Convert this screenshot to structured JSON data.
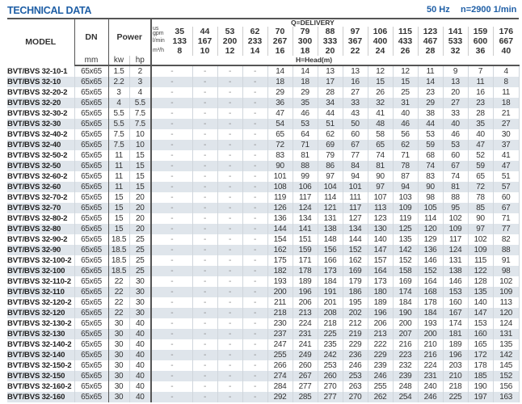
{
  "header": {
    "title": "TECHNICAL DATA",
    "frequency": "50 Hz",
    "speed": "n=2900 1/min"
  },
  "columns": {
    "model": "MODEL",
    "dn": "DN",
    "dn_unit": "mm",
    "power": "Power",
    "kw": "kw",
    "hp": "hp",
    "gpm_label": "us gpm",
    "lmin_label": "l/min",
    "m3h_label": "m³/h",
    "delivery_label": "Q=DELIVERY",
    "head_label": "H=Head(m)",
    "gpm": [
      "35",
      "44",
      "53",
      "62",
      "70",
      "79",
      "88",
      "97",
      "106",
      "115",
      "123",
      "141",
      "159",
      "176"
    ],
    "lmin": [
      "133",
      "167",
      "200",
      "233",
      "267",
      "300",
      "333",
      "367",
      "400",
      "433",
      "467",
      "533",
      "600",
      "667"
    ],
    "m3h": [
      "8",
      "10",
      "12",
      "14",
      "16",
      "18",
      "20",
      "22",
      "24",
      "26",
      "28",
      "32",
      "36",
      "40"
    ]
  },
  "colors": {
    "title": "#1f5fa6",
    "row_alt": "#dfe5eb"
  },
  "rows": [
    {
      "model": "BVT/BVS 32-10-1",
      "dn": "65x65",
      "kw": "1.5",
      "hp": "2",
      "heads": [
        "-",
        "-",
        "-",
        "-",
        "14",
        "14",
        "13",
        "13",
        "12",
        "12",
        "11",
        "9",
        "7",
        "4"
      ]
    },
    {
      "model": "BVT/BVS 32-10",
      "dn": "65x65",
      "kw": "2.2",
      "hp": "3",
      "heads": [
        "-",
        "-",
        "-",
        "-",
        "18",
        "18",
        "17",
        "16",
        "15",
        "15",
        "14",
        "13",
        "11",
        "8"
      ]
    },
    {
      "model": "BVT/BVS 32-20-2",
      "dn": "65x65",
      "kw": "3",
      "hp": "4",
      "heads": [
        "-",
        "-",
        "-",
        "-",
        "29",
        "29",
        "28",
        "27",
        "26",
        "25",
        "23",
        "20",
        "16",
        "11"
      ]
    },
    {
      "model": "BVT/BVS 32-20",
      "dn": "65x65",
      "kw": "4",
      "hp": "5.5",
      "heads": [
        "-",
        "-",
        "-",
        "-",
        "36",
        "35",
        "34",
        "33",
        "32",
        "31",
        "29",
        "27",
        "23",
        "18"
      ]
    },
    {
      "model": "BVT/BVS 32-30-2",
      "dn": "65x65",
      "kw": "5.5",
      "hp": "7.5",
      "heads": [
        "-",
        "-",
        "-",
        "-",
        "47",
        "46",
        "44",
        "43",
        "41",
        "40",
        "38",
        "33",
        "28",
        "21"
      ]
    },
    {
      "model": "BVT/BVS 32-30",
      "dn": "65x65",
      "kw": "5.5",
      "hp": "7.5",
      "heads": [
        "-",
        "-",
        "-",
        "-",
        "54",
        "53",
        "51",
        "50",
        "48",
        "46",
        "44",
        "40",
        "35",
        "27"
      ]
    },
    {
      "model": "BVT/BVS 32-40-2",
      "dn": "65x65",
      "kw": "7.5",
      "hp": "10",
      "heads": [
        "-",
        "-",
        "-",
        "-",
        "65",
        "64",
        "62",
        "60",
        "58",
        "56",
        "53",
        "46",
        "40",
        "30"
      ]
    },
    {
      "model": "BVT/BVS 32-40",
      "dn": "65x65",
      "kw": "7.5",
      "hp": "10",
      "heads": [
        "-",
        "-",
        "-",
        "-",
        "72",
        "71",
        "69",
        "67",
        "65",
        "62",
        "59",
        "53",
        "47",
        "37"
      ]
    },
    {
      "model": "BVT/BVS 32-50-2",
      "dn": "65x65",
      "kw": "11",
      "hp": "15",
      "heads": [
        "-",
        "-",
        "-",
        "-",
        "83",
        "81",
        "79",
        "77",
        "74",
        "71",
        "68",
        "60",
        "52",
        "41"
      ]
    },
    {
      "model": "BVT/BVS 32-50",
      "dn": "65x65",
      "kw": "11",
      "hp": "15",
      "heads": [
        "-",
        "-",
        "-",
        "-",
        "90",
        "88",
        "86",
        "84",
        "81",
        "78",
        "74",
        "67",
        "59",
        "47"
      ]
    },
    {
      "model": "BVT/BVS 32-60-2",
      "dn": "65x65",
      "kw": "11",
      "hp": "15",
      "heads": [
        "-",
        "-",
        "-",
        "-",
        "101",
        "99",
        "97",
        "94",
        "90",
        "87",
        "83",
        "74",
        "65",
        "51"
      ]
    },
    {
      "model": "BVT/BVS 32-60",
      "dn": "65x65",
      "kw": "11",
      "hp": "15",
      "heads": [
        "-",
        "-",
        "-",
        "-",
        "108",
        "106",
        "104",
        "101",
        "97",
        "94",
        "90",
        "81",
        "72",
        "57"
      ]
    },
    {
      "model": "BVT/BVS 32-70-2",
      "dn": "65x65",
      "kw": "15",
      "hp": "20",
      "heads": [
        "-",
        "-",
        "-",
        "-",
        "119",
        "117",
        "114",
        "111",
        "107",
        "103",
        "98",
        "88",
        "78",
        "60"
      ]
    },
    {
      "model": "BVT/BVS 32-70",
      "dn": "65x65",
      "kw": "15",
      "hp": "20",
      "heads": [
        "-",
        "-",
        "-",
        "-",
        "126",
        "124",
        "121",
        "117",
        "113",
        "109",
        "105",
        "95",
        "85",
        "67"
      ]
    },
    {
      "model": "BVT/BVS 32-80-2",
      "dn": "65x65",
      "kw": "15",
      "hp": "20",
      "heads": [
        "-",
        "-",
        "-",
        "-",
        "136",
        "134",
        "131",
        "127",
        "123",
        "119",
        "114",
        "102",
        "90",
        "71"
      ]
    },
    {
      "model": "BVT/BVS 32-80",
      "dn": "65x65",
      "kw": "15",
      "hp": "20",
      "heads": [
        "-",
        "-",
        "-",
        "-",
        "144",
        "141",
        "138",
        "134",
        "130",
        "125",
        "120",
        "109",
        "97",
        "77"
      ]
    },
    {
      "model": "BVT/BVS 32-90-2",
      "dn": "65x65",
      "kw": "18.5",
      "hp": "25",
      "heads": [
        "-",
        "-",
        "-",
        "-",
        "154",
        "151",
        "148",
        "144",
        "140",
        "135",
        "129",
        "117",
        "102",
        "82"
      ]
    },
    {
      "model": "BVT/BVS 32-90",
      "dn": "65x65",
      "kw": "18.5",
      "hp": "25",
      "heads": [
        "-",
        "-",
        "-",
        "-",
        "162",
        "159",
        "156",
        "152",
        "147",
        "142",
        "136",
        "124",
        "109",
        "88"
      ]
    },
    {
      "model": "BVT/BVS 32-100-2",
      "dn": "65x65",
      "kw": "18.5",
      "hp": "25",
      "heads": [
        "-",
        "-",
        "-",
        "-",
        "175",
        "171",
        "166",
        "162",
        "157",
        "152",
        "146",
        "131",
        "115",
        "91"
      ]
    },
    {
      "model": "BVT/BVS 32-100",
      "dn": "65x65",
      "kw": "18.5",
      "hp": "25",
      "heads": [
        "-",
        "-",
        "-",
        "-",
        "182",
        "178",
        "173",
        "169",
        "164",
        "158",
        "152",
        "138",
        "122",
        "98"
      ]
    },
    {
      "model": "BVT/BVS 32-110-2",
      "dn": "65x65",
      "kw": "22",
      "hp": "30",
      "heads": [
        "-",
        "-",
        "-",
        "-",
        "193",
        "189",
        "184",
        "179",
        "173",
        "169",
        "164",
        "146",
        "128",
        "102"
      ]
    },
    {
      "model": "BVT/BVS 32-110",
      "dn": "65x65",
      "kw": "22",
      "hp": "30",
      "heads": [
        "-",
        "-",
        "-",
        "-",
        "200",
        "196",
        "191",
        "186",
        "180",
        "174",
        "168",
        "153",
        "135",
        "109"
      ]
    },
    {
      "model": "BVT/BVS 32-120-2",
      "dn": "65x65",
      "kw": "22",
      "hp": "30",
      "heads": [
        "-",
        "-",
        "-",
        "-",
        "211",
        "206",
        "201",
        "195",
        "189",
        "184",
        "178",
        "160",
        "140",
        "113"
      ]
    },
    {
      "model": "BVT/BVS 32-120",
      "dn": "65x65",
      "kw": "22",
      "hp": "30",
      "heads": [
        "-",
        "-",
        "-",
        "-",
        "218",
        "213",
        "208",
        "202",
        "196",
        "190",
        "184",
        "167",
        "147",
        "120"
      ]
    },
    {
      "model": "BVT/BVS 32-130-2",
      "dn": "65x65",
      "kw": "30",
      "hp": "40",
      "heads": [
        "-",
        "-",
        "-",
        "-",
        "230",
        "224",
        "218",
        "212",
        "206",
        "200",
        "193",
        "174",
        "153",
        "124"
      ]
    },
    {
      "model": "BVT/BVS 32-130",
      "dn": "65x65",
      "kw": "30",
      "hp": "40",
      "heads": [
        "-",
        "-",
        "-",
        "-",
        "237",
        "231",
        "225",
        "219",
        "213",
        "207",
        "200",
        "181",
        "160",
        "131"
      ]
    },
    {
      "model": "BVT/BVS 32-140-2",
      "dn": "65x65",
      "kw": "30",
      "hp": "40",
      "heads": [
        "-",
        "-",
        "-",
        "-",
        "247",
        "241",
        "235",
        "229",
        "222",
        "216",
        "210",
        "189",
        "165",
        "135"
      ]
    },
    {
      "model": "BVT/BVS 32-140",
      "dn": "65x65",
      "kw": "30",
      "hp": "40",
      "heads": [
        "-",
        "-",
        "-",
        "-",
        "255",
        "249",
        "242",
        "236",
        "229",
        "223",
        "216",
        "196",
        "172",
        "142"
      ]
    },
    {
      "model": "BVT/BVS 32-150-2",
      "dn": "65x65",
      "kw": "30",
      "hp": "40",
      "heads": [
        "-",
        "-",
        "-",
        "-",
        "266",
        "260",
        "253",
        "246",
        "239",
        "232",
        "224",
        "203",
        "178",
        "145"
      ]
    },
    {
      "model": "BVT/BVS 32-150",
      "dn": "65x65",
      "kw": "30",
      "hp": "40",
      "heads": [
        "-",
        "-",
        "-",
        "-",
        "274",
        "267",
        "260",
        "253",
        "246",
        "239",
        "231",
        "210",
        "185",
        "152"
      ]
    },
    {
      "model": "BVT/BVS 32-160-2",
      "dn": "65x65",
      "kw": "30",
      "hp": "40",
      "heads": [
        "-",
        "-",
        "-",
        "-",
        "284",
        "277",
        "270",
        "263",
        "255",
        "248",
        "240",
        "218",
        "190",
        "156"
      ]
    },
    {
      "model": "BVT/BVS 32-160",
      "dn": "65x65",
      "kw": "30",
      "hp": "40",
      "heads": [
        "-",
        "-",
        "-",
        "-",
        "292",
        "285",
        "277",
        "270",
        "262",
        "254",
        "246",
        "225",
        "197",
        "163"
      ]
    }
  ]
}
